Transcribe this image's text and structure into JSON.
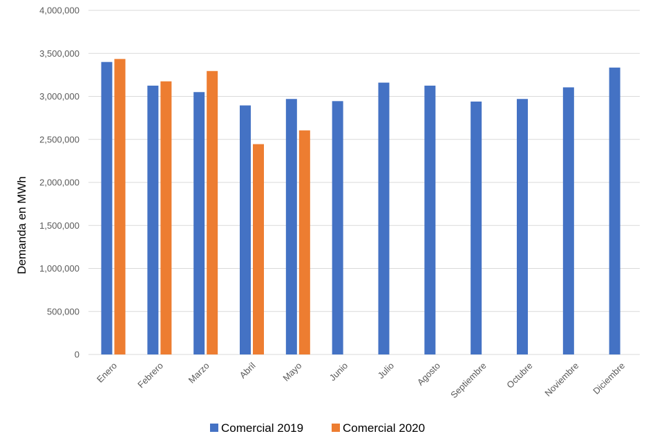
{
  "chart_data": {
    "type": "bar",
    "ylabel": "Demanda en MWh",
    "ylim": [
      0,
      4000000
    ],
    "yticks": [
      0,
      500000,
      1000000,
      1500000,
      2000000,
      2500000,
      3000000,
      3500000,
      4000000
    ],
    "ytick_labels": [
      "0",
      "500,000",
      "1,000,000",
      "1,500,000",
      "2,000,000",
      "2,500,000",
      "3,000,000",
      "3,500,000",
      "4,000,000"
    ],
    "categories": [
      "Enero",
      "Febrero",
      "Marzo",
      "Abril",
      "Mayo",
      "Junio",
      "Julio",
      "Agosto",
      "Septiembre",
      "Octubre",
      "Noviembre",
      "Diciembre"
    ],
    "series": [
      {
        "name": "Comercial 2019",
        "color": "#4472c4",
        "values": [
          3400000,
          3125000,
          3050000,
          2895000,
          2970000,
          2945000,
          3160000,
          3125000,
          2940000,
          2970000,
          3105000,
          3335000
        ]
      },
      {
        "name": "Comercial 2020",
        "color": "#ed7d31",
        "values": [
          3435000,
          3175000,
          3295000,
          2445000,
          2605000,
          null,
          null,
          null,
          null,
          null,
          null,
          null
        ]
      }
    ],
    "grid": true,
    "legend_position": "bottom"
  }
}
